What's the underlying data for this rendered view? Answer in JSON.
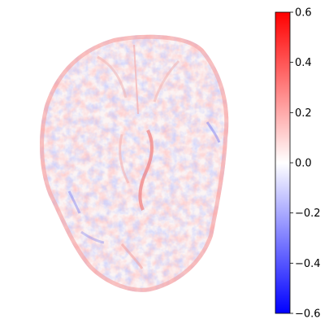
{
  "figure": {
    "image_description_name": "brain-slice-difference-map",
    "colormap": {
      "name": "bwr",
      "colors": {
        "low": "#0000ff",
        "mid": "#ffffff",
        "high": "#ff0000"
      },
      "range": [
        -0.6,
        0.6
      ],
      "ticks": [
        {
          "value": 0.6,
          "label": "0.6"
        },
        {
          "value": 0.4,
          "label": "0.4"
        },
        {
          "value": 0.2,
          "label": "0.2"
        },
        {
          "value": 0.0,
          "label": "0.0"
        },
        {
          "value": -0.2,
          "label": "−0.2"
        },
        {
          "value": -0.4,
          "label": "−0.4"
        },
        {
          "value": -0.6,
          "label": "−0.6"
        }
      ]
    }
  }
}
